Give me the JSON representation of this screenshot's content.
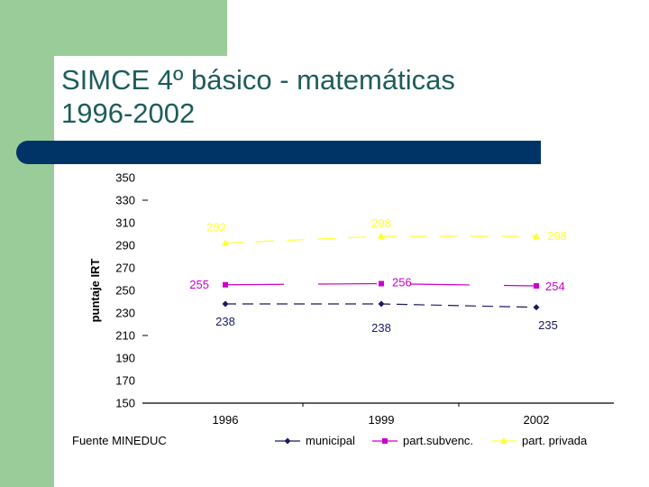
{
  "slide": {
    "title_line1": "SIMCE 4º básico - matemáticas",
    "title_line2": "1996-2002",
    "source": "Fuente MINEDUC",
    "colors": {
      "side_panel": "#99cc99",
      "title": "#1f5c5c",
      "band": "#003366"
    }
  },
  "chart_data": {
    "type": "line",
    "title": "",
    "xlabel": "",
    "ylabel": "puntaje IRT",
    "categories": [
      "1996",
      "1999",
      "2002"
    ],
    "ylim": [
      150,
      350
    ],
    "yticks": [
      "150",
      "170",
      "190",
      "210",
      "230",
      "250",
      "270",
      "290",
      "310",
      "330",
      "350"
    ],
    "grid": false,
    "legend": "bottom",
    "series": [
      {
        "name": "municipal",
        "values": [
          238,
          238,
          235
        ],
        "labels": [
          "238",
          "238",
          "235"
        ],
        "color": "#1a1a66",
        "marker": "diamond"
      },
      {
        "name": "part.subvenc.",
        "values": [
          255,
          256,
          254
        ],
        "labels": [
          "255",
          "256",
          "254"
        ],
        "color": "#cc00cc",
        "marker": "square"
      },
      {
        "name": "part. privada",
        "values": [
          292,
          298,
          298
        ],
        "labels": [
          "292",
          "298",
          "298"
        ],
        "color": "#ffff33",
        "marker": "triangle"
      }
    ]
  }
}
